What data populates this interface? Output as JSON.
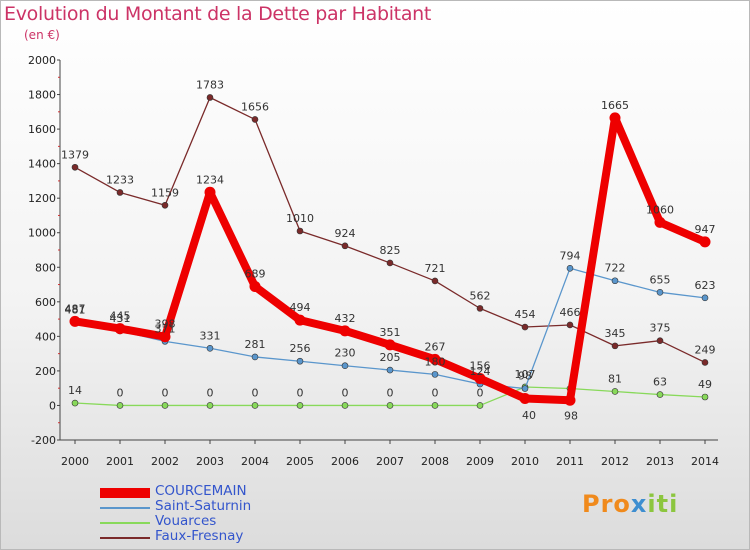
{
  "title": "Evolution du Montant de la Dette par Habitant",
  "subtitle": "(en €)",
  "logo": {
    "p": "Pro",
    "x": "x",
    "iti": "iti"
  },
  "chart_data": {
    "type": "line",
    "x": [
      "2000",
      "2001",
      "2002",
      "2003",
      "2004",
      "2005",
      "2006",
      "2007",
      "2008",
      "2009",
      "2010",
      "2011",
      "2012",
      "2013",
      "2014"
    ],
    "ylim": [
      -200,
      2000
    ],
    "yticks": [
      -200,
      0,
      200,
      400,
      600,
      800,
      1000,
      1200,
      1400,
      1600,
      1800,
      2000
    ],
    "grid": false,
    "legend_position": "bottom-left",
    "series": [
      {
        "name": "Faux-Fresnay",
        "color": "#7a2a2a",
        "values": [
          1379,
          1233,
          1159,
          1783,
          1656,
          1010,
          924,
          825,
          721,
          562,
          454,
          466,
          345,
          375,
          249
        ],
        "labels": [
          "1379",
          "1233",
          "1159",
          "1783",
          "1656",
          "1010",
          "924",
          "825",
          "721",
          "562",
          "454",
          "466",
          "345",
          "375",
          "249"
        ]
      },
      {
        "name": "Vouarces",
        "color": "#88d95a",
        "values": [
          14,
          0,
          0,
          0,
          0,
          0,
          0,
          0,
          0,
          0,
          107,
          98,
          81,
          63,
          49
        ],
        "labels": [
          "14",
          "0",
          "0",
          "0",
          "0",
          "0",
          "0",
          "0",
          "0",
          "0",
          "107",
          "",
          "81",
          "63",
          "49"
        ]
      },
      {
        "name": "Saint-Saturnin",
        "color": "#5a96cc",
        "values": [
          481,
          431,
          371,
          331,
          281,
          256,
          230,
          205,
          180,
          124,
          98,
          794,
          722,
          655,
          623
        ],
        "labels": [
          "481",
          "431",
          "371",
          "331",
          "281",
          "256",
          "230",
          "205",
          "180",
          "124",
          "98",
          "794",
          "722",
          "655",
          "623"
        ]
      },
      {
        "name": "COURCEMAIN",
        "color": "#ee0000",
        "values": [
          487,
          445,
          398,
          1234,
          689,
          494,
          432,
          351,
          267,
          156,
          40,
          30,
          1665,
          1060,
          947
        ],
        "labels": [
          "487",
          "445",
          "398",
          "1234",
          "689",
          "494",
          "432",
          "351",
          "267",
          "156",
          "",
          "",
          "1665",
          "1060",
          "947"
        ]
      }
    ],
    "extra_labels": [
      "40",
      "98"
    ]
  },
  "legend": [
    {
      "name": "COURCEMAIN",
      "color": "#ee0000",
      "text_color": "#3355cc",
      "width": 10
    },
    {
      "name": "Saint-Saturnin",
      "color": "#5a96cc",
      "text_color": "#3355cc",
      "width": 2
    },
    {
      "name": "Vouarces",
      "color": "#88d95a",
      "text_color": "#3355cc",
      "width": 2
    },
    {
      "name": "Faux-Fresnay",
      "color": "#7a2a2a",
      "text_color": "#3355cc",
      "width": 2
    }
  ]
}
